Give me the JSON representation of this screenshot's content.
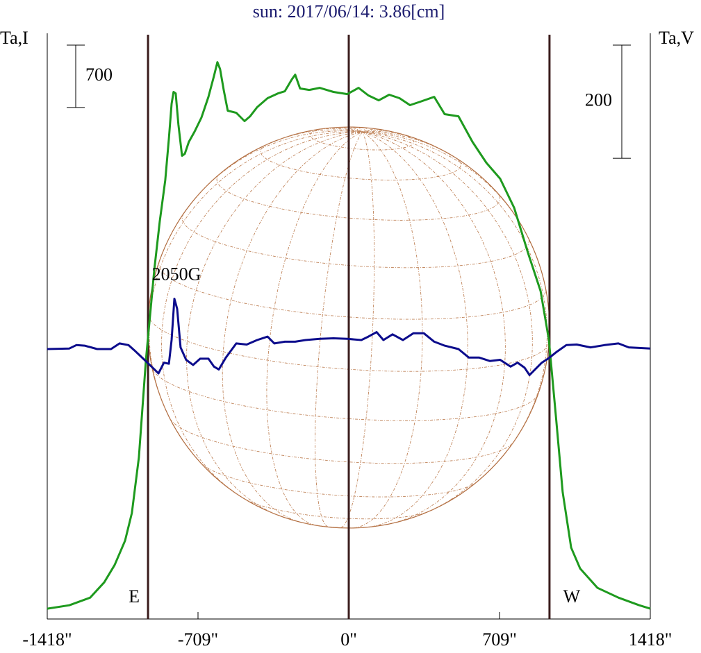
{
  "chart_data": {
    "type": "line",
    "title": "sun: 2017/06/14: 3.86[cm]",
    "ylabel": "Ta,I",
    "y2label": "Ta,V",
    "xlim": [
      -1418,
      1418
    ],
    "xticks": [
      {
        "value": -1418,
        "label": "-1418\""
      },
      {
        "value": -709,
        "label": "-709\""
      },
      {
        "value": 0,
        "label": "0\""
      },
      {
        "value": 709,
        "label": "709\""
      },
      {
        "value": 1418,
        "label": "1418\""
      }
    ],
    "ylim": [
      -100,
      6470
    ],
    "y2lim": [
      -478,
      557
    ],
    "scale_bars": [
      {
        "value": 700,
        "axis": "y"
      },
      {
        "value": 200,
        "axis": "y2"
      }
    ],
    "vlines": [
      {
        "value": -944,
        "label": "E"
      },
      {
        "value": 0
      },
      {
        "value": 944,
        "label": "W"
      }
    ],
    "annotations": [
      "2050G"
    ],
    "series": [
      {
        "color": "#1e9a1e",
        "axis": "y",
        "x": [
          -1418,
          -1314,
          -1216,
          -1150,
          -1101,
          -1052,
          -1020,
          -987,
          -954,
          -915,
          -889,
          -863,
          -846,
          -833,
          -824,
          -814,
          -801,
          -784,
          -771,
          -752,
          -725,
          -693,
          -660,
          -634,
          -618,
          -605,
          -588,
          -569,
          -529,
          -490,
          -464,
          -431,
          -382,
          -333,
          -301,
          -268,
          -252,
          -229,
          -186,
          -137,
          -72,
          -7,
          46,
          92,
          141,
          190,
          239,
          288,
          337,
          402,
          451,
          516,
          582,
          647,
          712,
          778,
          843,
          902,
          941,
          974,
          1006,
          1046,
          1088,
          1170,
          1268,
          1366,
          1418
        ],
        "values": [
          16,
          54,
          140,
          311,
          506,
          778,
          1089,
          1712,
          2801,
          3812,
          4357,
          4824,
          5290,
          5679,
          5812,
          5796,
          5446,
          5096,
          5119,
          5252,
          5368,
          5524,
          5757,
          5991,
          6146,
          6068,
          5835,
          5602,
          5578,
          5485,
          5539,
          5641,
          5742,
          5796,
          5819,
          5952,
          6006,
          5851,
          5835,
          5858,
          5812,
          5788,
          5858,
          5773,
          5718,
          5781,
          5742,
          5664,
          5703,
          5757,
          5563,
          5539,
          5252,
          5018,
          4839,
          4512,
          4007,
          3579,
          3034,
          2178,
          1323,
          700,
          467,
          249,
          140,
          54,
          16
        ]
      },
      {
        "color": "#0c0c8c",
        "axis": "y2",
        "x": [
          -1418,
          -1314,
          -1281,
          -1242,
          -1183,
          -1118,
          -1078,
          -1036,
          -1003,
          -961,
          -922,
          -895,
          -869,
          -846,
          -833,
          -820,
          -807,
          -791,
          -765,
          -732,
          -699,
          -660,
          -634,
          -611,
          -578,
          -529,
          -480,
          -431,
          -382,
          -350,
          -301,
          -252,
          -203,
          -137,
          -72,
          -7,
          59,
          92,
          131,
          163,
          206,
          255,
          304,
          353,
          402,
          451,
          516,
          565,
          614,
          663,
          712,
          761,
          794,
          827,
          850,
          876,
          908,
          941,
          974,
          1023,
          1072,
          1137,
          1203,
          1268,
          1317,
          1366,
          1418
        ],
        "values": [
          -1,
          0,
          6,
          5,
          -1,
          -1,
          9,
          6,
          -5,
          -20,
          -34,
          -44,
          -25,
          -27,
          15,
          88,
          70,
          2,
          -20,
          -29,
          -18,
          -18,
          -32,
          -37,
          -16,
          9,
          7,
          15,
          21,
          9,
          12,
          12,
          15,
          17,
          18,
          17,
          15,
          21,
          29,
          15,
          25,
          15,
          27,
          27,
          12,
          5,
          -1,
          -16,
          -16,
          -22,
          -20,
          -32,
          -25,
          -34,
          -47,
          -37,
          -25,
          -17,
          -7,
          6,
          7,
          2,
          6,
          9,
          2,
          1,
          0
        ]
      }
    ]
  }
}
